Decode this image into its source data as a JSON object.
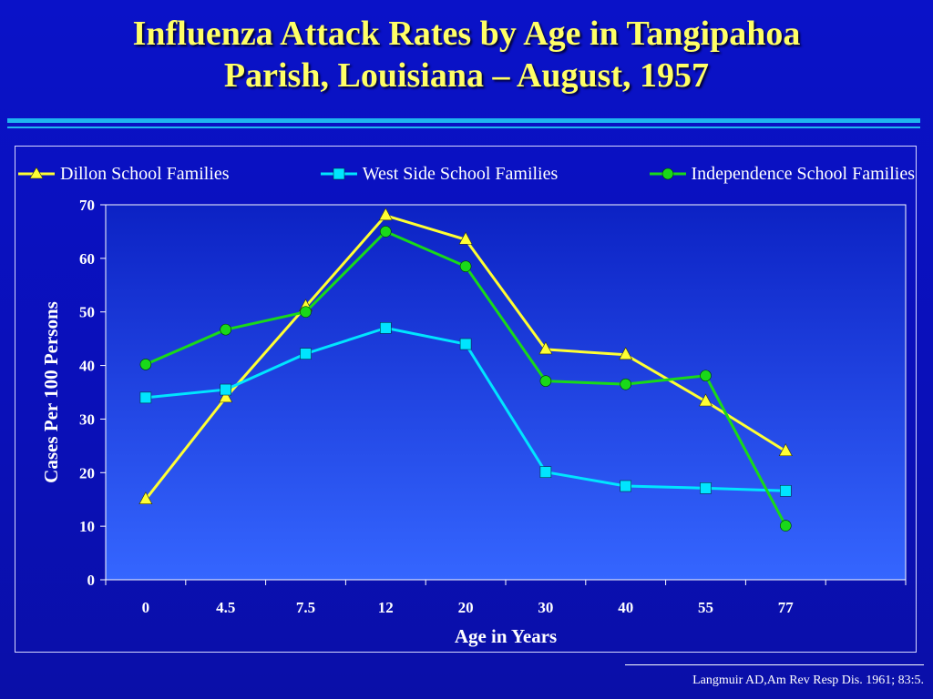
{
  "slide": {
    "title_line1": "Influenza Attack Rates by Age in Tangipahoa",
    "title_line2": "Parish, Louisiana – August, 1957",
    "citation": "Langmuir AD,Am Rev Resp Dis. 1961; 83:5."
  },
  "chart_data": {
    "type": "line",
    "title": "",
    "xlabel": "Age in Years",
    "ylabel": "Cases Per 100 Persons",
    "categories": [
      "0",
      "4.5",
      "7.5",
      "12",
      "20",
      "30",
      "40",
      "55",
      "77"
    ],
    "ylim": [
      0,
      70
    ],
    "yticks": [
      0,
      10,
      20,
      30,
      40,
      50,
      60,
      70
    ],
    "grid": false,
    "legend": "top",
    "series": [
      {
        "name": "Dillon School Families",
        "color": "#ffff33",
        "marker": "triangle",
        "values": [
          15,
          34,
          51,
          68,
          63.5,
          43,
          42,
          33.3,
          24
        ]
      },
      {
        "name": "West Side School Families",
        "color": "#00e5ff",
        "marker": "square",
        "values": [
          34,
          35.5,
          42.2,
          47,
          44,
          20.1,
          17.5,
          17.1,
          16.6
        ]
      },
      {
        "name": "Independence School Families",
        "color": "#19d919",
        "marker": "circle",
        "values": [
          40.2,
          46.7,
          50,
          65,
          58.5,
          37.1,
          36.5,
          38.1,
          10.1
        ]
      }
    ]
  }
}
